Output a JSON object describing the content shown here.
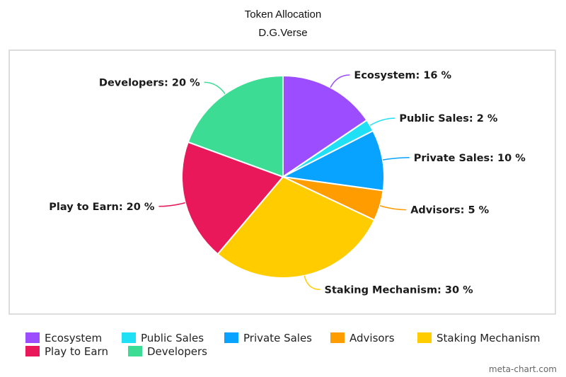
{
  "chart_data": {
    "type": "pie",
    "title": "Token Allocation",
    "subtitle": "D.G.Verse",
    "slices": [
      {
        "name": "Ecosystem",
        "value": 16,
        "label": "Ecosystem: 16 %",
        "color": "#9b4dff"
      },
      {
        "name": "Public Sales",
        "value": 2,
        "label": "Public Sales: 2 %",
        "color": "#1fe0f5"
      },
      {
        "name": "Private Sales",
        "value": 10,
        "label": "Private Sales: 10 %",
        "color": "#08a2ff"
      },
      {
        "name": "Advisors",
        "value": 5,
        "label": "Advisors: 5 %",
        "color": "#ff9c00"
      },
      {
        "name": "Staking Mechanism",
        "value": 30,
        "label": "Staking Mechanism: 30 %",
        "color": "#ffcc00"
      },
      {
        "name": "Play to Earn",
        "value": 20,
        "label": "Play to Earn: 20 %",
        "color": "#e8185a"
      },
      {
        "name": "Developers",
        "value": 20,
        "label": "Developers: 20 %",
        "color": "#3cdc94"
      }
    ],
    "legend_placement": "bottom"
  },
  "watermark": "meta-chart.com"
}
